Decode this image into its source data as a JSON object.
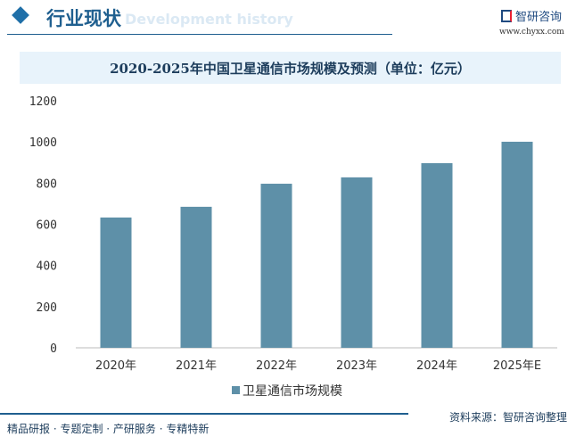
{
  "header": {
    "title": "行业现状",
    "ghost_text": "Development history",
    "logo_text": "智研咨询",
    "url": "www.chyxx.com"
  },
  "chart_data": {
    "type": "bar",
    "title": "2020-2025年中国卫星通信市场规模及预测（单位：亿元）",
    "categories": [
      "2020年",
      "2021年",
      "2022年",
      "2023年",
      "2024年",
      "2025年E"
    ],
    "series": [
      {
        "name": "卫星通信市场规模",
        "values": [
          633,
          685,
          797,
          828,
          897,
          1001
        ],
        "color": "#5e90a8"
      }
    ],
    "ylim": [
      0,
      1200
    ],
    "yticks": [
      0,
      200,
      400,
      600,
      800,
      1000,
      1200
    ],
    "grid": false,
    "legend": "bottom"
  },
  "footer": {
    "left": "精品研报 · 专题定制 · 产研服务 · 专精特新",
    "right": "资料来源：智研咨询整理"
  }
}
